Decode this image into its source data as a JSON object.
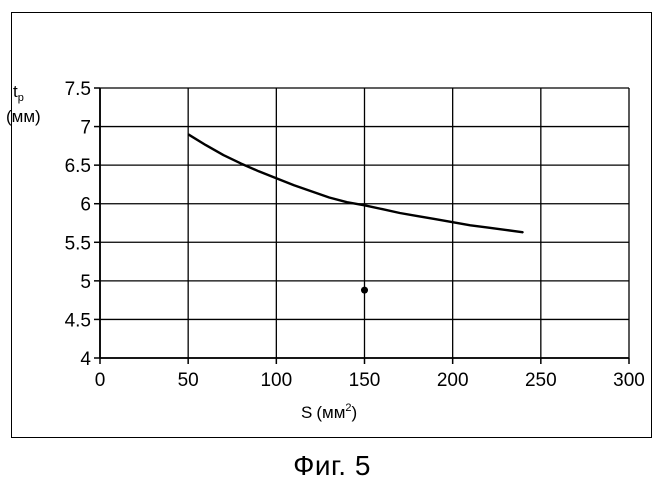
{
  "chart_data": {
    "type": "line",
    "title": "",
    "xlabel_main": "S",
    "xlabel_unit": "(мм",
    "xlabel_sup": "2",
    "xlabel_close": ")",
    "ylabel_main": "t",
    "ylabel_sub": "p",
    "ylabel_unit": "(мм)",
    "xlim": [
      0,
      300
    ],
    "ylim": [
      4,
      7.5
    ],
    "xticks": [
      0,
      50,
      100,
      150,
      200,
      250,
      300
    ],
    "yticks": [
      4,
      4.5,
      5,
      5.5,
      6,
      6.5,
      7,
      7.5
    ],
    "xtick_labels": [
      "0",
      "50",
      "100",
      "150",
      "200",
      "250",
      "300"
    ],
    "ytick_labels": [
      "4",
      "4.5",
      "5",
      "5.5",
      "6",
      "6.5",
      "7",
      "7.5"
    ],
    "grid": true,
    "series": [
      {
        "name": "curve",
        "x": [
          50,
          60,
          70,
          80,
          90,
          100,
          110,
          120,
          130,
          140,
          150,
          160,
          170,
          180,
          190,
          200,
          210,
          220,
          230,
          240
        ],
        "y": [
          6.9,
          6.76,
          6.63,
          6.52,
          6.42,
          6.33,
          6.24,
          6.16,
          6.08,
          6.02,
          5.98,
          5.93,
          5.88,
          5.84,
          5.8,
          5.76,
          5.72,
          5.69,
          5.66,
          5.63
        ]
      }
    ],
    "points": [
      {
        "name": "marker",
        "x": 150,
        "y": 4.88
      }
    ]
  },
  "caption": "Фиг. 5"
}
